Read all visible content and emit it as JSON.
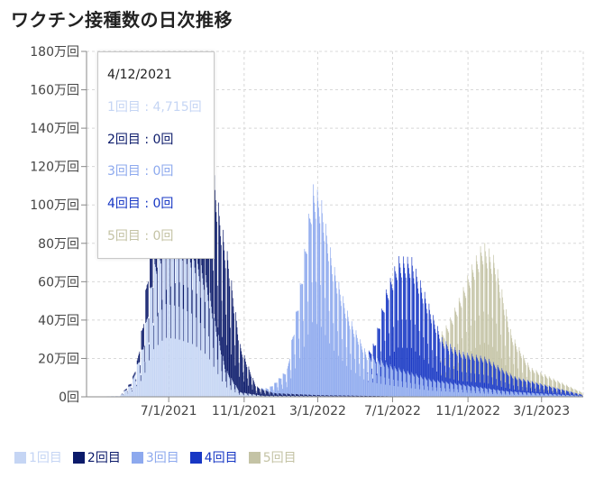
{
  "title": "ワクチン接種数の日次推移",
  "colors": {
    "dose1": "#c5d5f4",
    "dose2": "#0b1a6a",
    "dose3": "#8da9ee",
    "dose4": "#1737c4",
    "dose5": "#c4c3a5",
    "grid": "#d8d8d8",
    "axis": "#888888"
  },
  "tooltip": {
    "date": "4/12/2021",
    "rows": [
      {
        "label": "1回目 : 4,715回",
        "series": "dose1"
      },
      {
        "label": "2回目 : 0回",
        "series": "dose2"
      },
      {
        "label": "3回目 : 0回",
        "series": "dose3"
      },
      {
        "label": "4回目 : 0回",
        "series": "dose4"
      },
      {
        "label": "5回目 : 0回",
        "series": "dose5"
      }
    ]
  },
  "legend": [
    {
      "label": "1回目",
      "series": "dose1"
    },
    {
      "label": "2回目",
      "series": "dose2"
    },
    {
      "label": "3回目",
      "series": "dose3"
    },
    {
      "label": "4回目",
      "series": "dose4"
    },
    {
      "label": "5回目",
      "series": "dose5"
    }
  ],
  "chart_data": {
    "type": "bar",
    "title": "ワクチン接種数の日次推移",
    "xlabel": "",
    "ylabel": "",
    "ylim": [
      0,
      1800000
    ],
    "y_ticks": [
      0,
      200000,
      400000,
      600000,
      800000,
      1000000,
      1200000,
      1400000,
      1600000,
      1800000
    ],
    "y_tick_labels": [
      "0回",
      "20万回",
      "40万回",
      "60万回",
      "80万回",
      "100万回",
      "120万回",
      "140万回",
      "160万回",
      "180万回"
    ],
    "x_range": [
      "2021-02-17",
      "2023-05-08"
    ],
    "x_ticks": [
      "2021-07-01",
      "2021-11-01",
      "2022-03-01",
      "2022-07-01",
      "2022-11-01",
      "2023-03-01"
    ],
    "x_tick_labels": [
      "7/1/2021",
      "11/1/2021",
      "3/1/2022",
      "7/1/2022",
      "11/1/2022",
      "3/1/2023"
    ],
    "grid": true,
    "legend_position": "bottom-left",
    "stacked": true,
    "series": [
      {
        "name": "1回目",
        "key": "dose1",
        "envelope": [
          [
            "2021-02-17",
            0
          ],
          [
            "2021-04-12",
            4715
          ],
          [
            "2021-05-01",
            70000
          ],
          [
            "2021-05-20",
            280000
          ],
          [
            "2021-06-05",
            700000
          ],
          [
            "2021-06-25",
            880000
          ],
          [
            "2021-07-15",
            860000
          ],
          [
            "2021-08-10",
            780000
          ],
          [
            "2021-09-01",
            620000
          ],
          [
            "2021-10-01",
            150000
          ],
          [
            "2021-10-25",
            25000
          ],
          [
            "2021-12-01",
            6000
          ],
          [
            "2022-03-01",
            4000
          ],
          [
            "2022-07-01",
            1500
          ],
          [
            "2023-05-08",
            0
          ]
        ]
      },
      {
        "name": "2回目",
        "key": "dose2",
        "envelope": [
          [
            "2021-02-17",
            0
          ],
          [
            "2021-04-12",
            0
          ],
          [
            "2021-05-10",
            20000
          ],
          [
            "2021-06-01",
            260000
          ],
          [
            "2021-06-25",
            700000
          ],
          [
            "2021-07-15",
            860000
          ],
          [
            "2021-08-10",
            800000
          ],
          [
            "2021-09-05",
            760000
          ],
          [
            "2021-10-05",
            620000
          ],
          [
            "2021-10-25",
            250000
          ],
          [
            "2021-11-20",
            45000
          ],
          [
            "2021-12-20",
            15000
          ],
          [
            "2022-03-01",
            6000
          ],
          [
            "2022-07-01",
            2000
          ],
          [
            "2023-05-08",
            0
          ]
        ]
      },
      {
        "name": "3回目",
        "key": "dose3",
        "envelope": [
          [
            "2021-02-17",
            0
          ],
          [
            "2021-11-25",
            0
          ],
          [
            "2021-12-10",
            15000
          ],
          [
            "2022-01-10",
            130000
          ],
          [
            "2022-02-01",
            600000
          ],
          [
            "2022-02-20",
            1100000
          ],
          [
            "2022-03-05",
            1050000
          ],
          [
            "2022-03-25",
            700000
          ],
          [
            "2022-04-20",
            420000
          ],
          [
            "2022-05-20",
            220000
          ],
          [
            "2022-07-01",
            160000
          ],
          [
            "2022-09-01",
            90000
          ],
          [
            "2022-11-01",
            60000
          ],
          [
            "2023-01-01",
            30000
          ],
          [
            "2023-05-08",
            5000
          ]
        ]
      },
      {
        "name": "4回目",
        "key": "dose4",
        "envelope": [
          [
            "2021-02-17",
            0
          ],
          [
            "2022-05-20",
            0
          ],
          [
            "2022-06-01",
            80000
          ],
          [
            "2022-06-20",
            380000
          ],
          [
            "2022-07-10",
            580000
          ],
          [
            "2022-08-01",
            600000
          ],
          [
            "2022-08-25",
            420000
          ],
          [
            "2022-09-20",
            220000
          ],
          [
            "2022-10-20",
            170000
          ],
          [
            "2022-12-01",
            160000
          ],
          [
            "2023-01-15",
            80000
          ],
          [
            "2023-05-08",
            5000
          ]
        ]
      },
      {
        "name": "5回目",
        "key": "dose5",
        "envelope": [
          [
            "2021-02-17",
            0
          ],
          [
            "2022-09-15",
            0
          ],
          [
            "2022-10-01",
            120000
          ],
          [
            "2022-11-05",
            450000
          ],
          [
            "2022-11-25",
            600000
          ],
          [
            "2022-12-15",
            550000
          ],
          [
            "2023-01-10",
            220000
          ],
          [
            "2023-02-10",
            70000
          ],
          [
            "2023-05-08",
            10000
          ]
        ]
      }
    ]
  }
}
